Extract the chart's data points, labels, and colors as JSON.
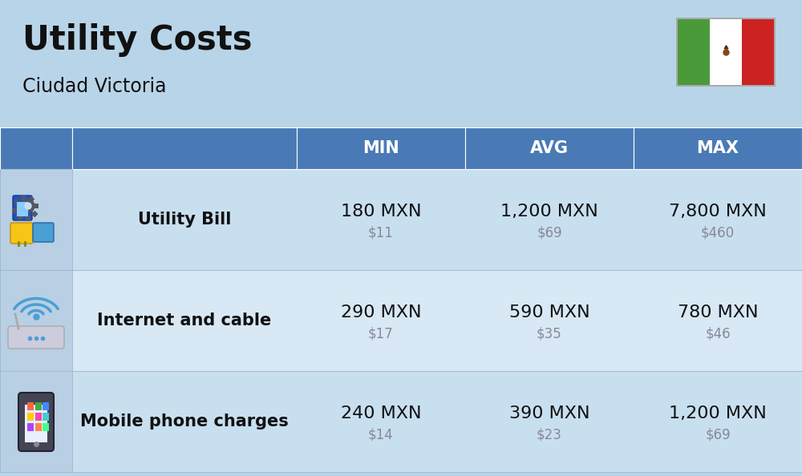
{
  "title": "Utility Costs",
  "subtitle": "Ciudad Victoria",
  "background_color": "#b8d4e8",
  "header_color": "#4a7ab5",
  "header_text_color": "#ffffff",
  "row_color_odd": "#c8dff0",
  "row_color_even": "#d8e8f4",
  "icon_col_color": "#b8cfe4",
  "label_col_color": "#c8dff0",
  "text_color_dark": "#111111",
  "text_color_secondary": "#888899",
  "columns": [
    "MIN",
    "AVG",
    "MAX"
  ],
  "rows": [
    {
      "label": "Utility Bill",
      "icon": "utility",
      "min_mxn": "180 MXN",
      "min_usd": "$11",
      "avg_mxn": "1,200 MXN",
      "avg_usd": "$69",
      "max_mxn": "7,800 MXN",
      "max_usd": "$460"
    },
    {
      "label": "Internet and cable",
      "icon": "internet",
      "min_mxn": "290 MXN",
      "min_usd": "$17",
      "avg_mxn": "590 MXN",
      "avg_usd": "$35",
      "max_mxn": "780 MXN",
      "max_usd": "$46"
    },
    {
      "label": "Mobile phone charges",
      "icon": "mobile",
      "min_mxn": "240 MXN",
      "min_usd": "$14",
      "avg_mxn": "390 MXN",
      "avg_usd": "$23",
      "max_mxn": "1,200 MXN",
      "max_usd": "$69"
    }
  ],
  "title_fontsize": 30,
  "subtitle_fontsize": 17,
  "header_fontsize": 15,
  "cell_fontsize_main": 16,
  "cell_fontsize_sub": 12,
  "label_fontsize": 15,
  "flag_green": "#4a9a3a",
  "flag_white": "#ffffff",
  "flag_red": "#cc2222"
}
